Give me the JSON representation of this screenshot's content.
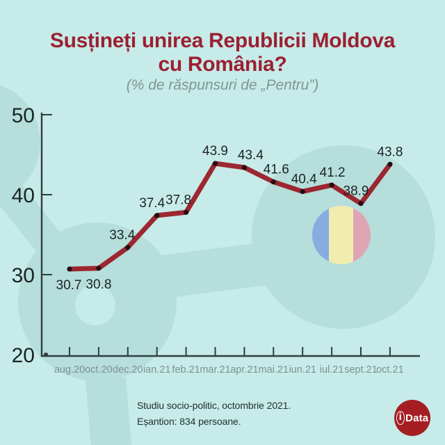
{
  "title": {
    "line1": "Susțineți unirea Republicii Moldova",
    "line2": "cu România?"
  },
  "subtitle": "(% de răspunsuri de „Pentru”)",
  "chart_data": {
    "type": "line",
    "title": "Susțineți unirea Republicii Moldova cu România?",
    "subtitle": "(% de răspunsuri de „Pentru”)",
    "categories": [
      "aug.20",
      "oct.20",
      "dec.20",
      "ian.21",
      "feb.21",
      "mar.21",
      "apr.21",
      "mai.21",
      "iun.21",
      "iul.21",
      "sept.21",
      "oct.21"
    ],
    "values": [
      30.7,
      30.8,
      33.4,
      37.4,
      37.8,
      43.9,
      43.4,
      41.6,
      40.4,
      41.2,
      38.9,
      43.8
    ],
    "xlabel": "",
    "ylabel": "",
    "ylim": [
      20,
      50
    ],
    "yticks": [
      20,
      30,
      40,
      50
    ],
    "grid": false,
    "legend": false,
    "value_labels": true,
    "label_side": [
      "below",
      "below",
      "above",
      "above",
      "above",
      "above",
      "above",
      "above",
      "above",
      "above",
      "above",
      "above"
    ],
    "label_dx": [
      -1,
      0,
      -8,
      -7,
      -11,
      0,
      9,
      4,
      2,
      1,
      -7,
      0
    ],
    "line_color": "#9c2731",
    "marker_color": "#220d12"
  },
  "footer": {
    "line1": "Studiu socio-politic, octombrie 2021.",
    "line2": "Eșantion: 834 persoane."
  },
  "logo": {
    "i": "i",
    "rest": "Data"
  },
  "colors": {
    "background": "#c7ebe8",
    "shapes": "#b6dedb",
    "title": "#9b2032",
    "subtitle": "#7e9694",
    "axis": "#2e3d40",
    "x_tick_label": "#7d9191",
    "y_tick_label": "#1a2425",
    "value_label": "#1c2326",
    "footer_text": "#1e2e2e",
    "logo_bg": "#a41e23",
    "logo_text": "#ffffff",
    "flag_blue": "#87ace0",
    "flag_yellow": "#f1edb0",
    "flag_red": "#dfa5b2"
  }
}
